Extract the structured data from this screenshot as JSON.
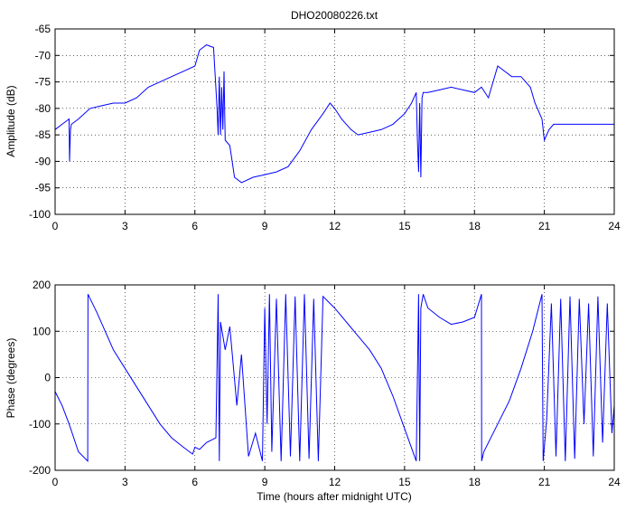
{
  "chart_data": [
    {
      "type": "line",
      "title": "DHO20080226.txt",
      "xlabel": "",
      "ylabel": "Amplitude (dB)",
      "xlim": [
        0,
        24
      ],
      "ylim": [
        -100,
        -65
      ],
      "x_ticks": [
        "0",
        "3",
        "6",
        "9",
        "12",
        "15",
        "18",
        "21",
        "24"
      ],
      "y_ticks": [
        "-65",
        "-70",
        "-75",
        "-80",
        "-85",
        "-90",
        "-95",
        "-100"
      ],
      "grid": true,
      "series_color": "#0000ff",
      "series": [
        {
          "x": [
            0,
            0.3,
            0.6,
            0.62,
            0.66,
            0.7,
            1.0,
            1.5,
            2.0,
            2.5,
            3.0,
            3.5,
            4.0,
            4.5,
            5.0,
            5.5,
            6.0,
            6.2,
            6.5,
            6.8,
            6.95,
            7.0,
            7.05,
            7.1,
            7.15,
            7.2,
            7.25,
            7.3,
            7.5,
            7.7,
            8.0,
            8.5,
            9.0,
            9.5,
            10.0,
            10.5,
            11.0,
            11.5,
            11.8,
            12.0,
            12.3,
            12.7,
            13.0,
            13.5,
            14.0,
            14.5,
            15.0,
            15.3,
            15.5,
            15.55,
            15.6,
            15.65,
            15.7,
            15.75,
            15.8,
            16.0,
            16.5,
            17.0,
            17.5,
            18.0,
            18.3,
            18.6,
            19.0,
            19.3,
            19.6,
            20.0,
            20.4,
            20.6,
            20.9,
            21.0,
            21.2,
            21.4,
            21.6,
            22.0,
            22.5,
            23.0,
            23.5,
            24.0
          ],
          "values": [
            -84,
            -83,
            -82,
            -90,
            -84,
            -83,
            -82,
            -80,
            -79.5,
            -79,
            -79,
            -78,
            -76,
            -75,
            -74,
            -73,
            -72,
            -69,
            -68,
            -68.5,
            -80,
            -85,
            -74,
            -85,
            -76,
            -84,
            -73,
            -86,
            -87,
            -93,
            -94,
            -93,
            -92.5,
            -92,
            -91,
            -88,
            -84,
            -81,
            -79,
            -80,
            -82,
            -84,
            -85,
            -84.5,
            -84,
            -83,
            -81,
            -79,
            -77,
            -86,
            -92,
            -79,
            -93,
            -78,
            -77,
            -77,
            -76.5,
            -76,
            -76.5,
            -77,
            -76,
            -78,
            -72,
            -73,
            -74,
            -74,
            -76,
            -79,
            -82,
            -86,
            -84,
            -83,
            -83,
            -83,
            -83,
            -83,
            -83,
            -83
          ]
        }
      ]
    },
    {
      "type": "line",
      "title": "",
      "xlabel": "Time (hours after midnight UTC)",
      "ylabel": "Phase (degrees)",
      "xlim": [
        0,
        24
      ],
      "ylim": [
        -200,
        200
      ],
      "x_ticks": [
        "0",
        "3",
        "6",
        "9",
        "12",
        "15",
        "18",
        "21",
        "24"
      ],
      "y_ticks": [
        "200",
        "100",
        "0",
        "-100",
        "-200"
      ],
      "grid": true,
      "series_color": "#0000ff",
      "series": [
        {
          "x": [
            0,
            0.3,
            0.6,
            1.0,
            1.4,
            1.41,
            1.8,
            2.5,
            3.0,
            3.5,
            4.0,
            4.5,
            5.0,
            5.5,
            5.9,
            6.0,
            6.2,
            6.5,
            6.9,
            7.0,
            7.05,
            7.1,
            7.3,
            7.5,
            7.8,
            8.0,
            8.3,
            8.6,
            8.9,
            9.0,
            9.1,
            9.2,
            9.3,
            9.5,
            9.7,
            9.9,
            10.1,
            10.3,
            10.5,
            10.7,
            10.9,
            11.1,
            11.3,
            11.5,
            11.8,
            12.0,
            12.5,
            13.0,
            13.5,
            14.0,
            14.5,
            15.0,
            15.5,
            15.6,
            15.65,
            15.7,
            15.8,
            16.0,
            16.5,
            17.0,
            17.5,
            18.0,
            18.3,
            18.31,
            18.4,
            19.0,
            19.5,
            20.0,
            20.5,
            20.9,
            20.95,
            21.1,
            21.3,
            21.5,
            21.7,
            21.9,
            22.1,
            22.3,
            22.5,
            22.7,
            22.9,
            23.1,
            23.3,
            23.5,
            23.7,
            23.9,
            24.0
          ],
          "values": [
            -30,
            -60,
            -100,
            -160,
            -180,
            180,
            140,
            60,
            20,
            -20,
            -60,
            -100,
            -130,
            -150,
            -165,
            -150,
            -155,
            -140,
            -130,
            180,
            -180,
            120,
            60,
            110,
            -60,
            50,
            -170,
            -120,
            -180,
            150,
            -100,
            180,
            -160,
            170,
            -180,
            180,
            -170,
            175,
            -180,
            180,
            -175,
            170,
            -180,
            175,
            160,
            150,
            120,
            90,
            60,
            20,
            -40,
            -110,
            -180,
            180,
            -180,
            150,
            180,
            150,
            130,
            115,
            120,
            130,
            180,
            -180,
            -160,
            -100,
            -50,
            20,
            100,
            180,
            -180,
            -90,
            160,
            -170,
            170,
            -180,
            175,
            -175,
            170,
            -100,
            160,
            -170,
            175,
            -140,
            160,
            -120,
            -60
          ]
        }
      ]
    }
  ]
}
